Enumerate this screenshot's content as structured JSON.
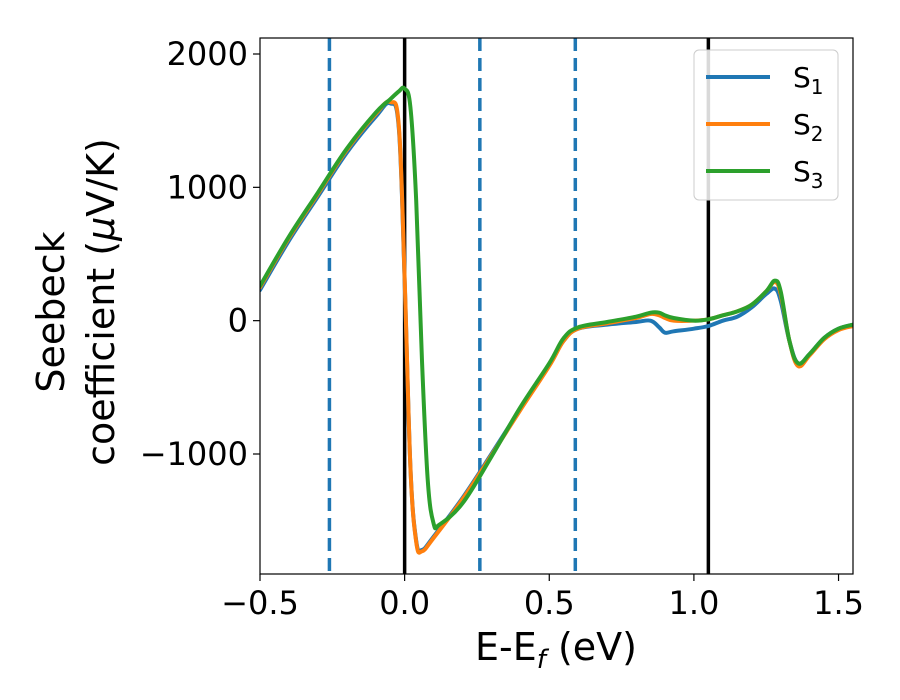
{
  "chart_data": {
    "type": "line",
    "xlabel_main": "E-E",
    "xlabel_sub": "f",
    "xlabel_unit": " (eV)",
    "ylabel_line1": "Seebeck",
    "ylabel_line2_pre": "coefficient  (",
    "ylabel_mu": "μ",
    "ylabel_line2_post": "V/K)",
    "xlim": [
      -0.5,
      1.55
    ],
    "ylim": [
      -1900,
      2120
    ],
    "xticks": [
      -0.5,
      0.0,
      0.5,
      1.0,
      1.5
    ],
    "xtick_labels": [
      "−0.5",
      "0.0",
      "0.5",
      "1.0",
      "1.5"
    ],
    "yticks": [
      -1000,
      0,
      1000,
      2000
    ],
    "ytick_labels": [
      "−1000",
      "0",
      "1000",
      "2000"
    ],
    "vlines_solid": [
      0.0,
      1.05
    ],
    "vlines_dashed": [
      -0.26,
      0.26,
      0.59
    ],
    "colors": {
      "s1": "#1f77b4",
      "s2": "#ff7f0e",
      "s3": "#2ca02c",
      "solid_vline": "#000000",
      "dashed_vline": "#1f77b4"
    },
    "legend": {
      "placement": "top-right"
    },
    "series": [
      {
        "name": "S",
        "sub": "1",
        "color": "#1f77b4",
        "x": [
          -0.5,
          -0.4,
          -0.3,
          -0.2,
          -0.1,
          -0.05,
          -0.02,
          0.0,
          0.02,
          0.04,
          0.06,
          0.1,
          0.2,
          0.3,
          0.4,
          0.5,
          0.55,
          0.6,
          0.7,
          0.8,
          0.85,
          0.88,
          0.9,
          0.93,
          1.0,
          1.05,
          1.1,
          1.15,
          1.2,
          1.25,
          1.28,
          1.3,
          1.33,
          1.36,
          1.4,
          1.45,
          1.5,
          1.55
        ],
        "y": [
          230,
          600,
          930,
          1260,
          1530,
          1630,
          1440,
          300,
          -1100,
          -1650,
          -1720,
          -1620,
          -1330,
          -1000,
          -660,
          -330,
          -150,
          -60,
          -30,
          -10,
          0,
          -50,
          -90,
          -80,
          -60,
          -40,
          0,
          30,
          100,
          200,
          240,
          150,
          -150,
          -320,
          -250,
          -130,
          -60,
          -30
        ]
      },
      {
        "name": "S",
        "sub": "2",
        "color": "#ff7f0e",
        "x": [
          -0.5,
          -0.4,
          -0.3,
          -0.2,
          -0.1,
          -0.05,
          -0.02,
          0.0,
          0.02,
          0.04,
          0.06,
          0.1,
          0.2,
          0.3,
          0.4,
          0.5,
          0.55,
          0.6,
          0.7,
          0.8,
          0.85,
          0.88,
          0.9,
          0.93,
          1.0,
          1.05,
          1.1,
          1.15,
          1.2,
          1.25,
          1.28,
          1.3,
          1.33,
          1.36,
          1.4,
          1.45,
          1.5,
          1.55
        ],
        "y": [
          250,
          620,
          950,
          1280,
          1550,
          1640,
          1460,
          320,
          -1100,
          -1660,
          -1730,
          -1630,
          -1340,
          -1010,
          -670,
          -340,
          -150,
          -60,
          -20,
          20,
          50,
          40,
          20,
          0,
          0,
          10,
          40,
          70,
          120,
          220,
          290,
          200,
          -150,
          -340,
          -260,
          -140,
          -70,
          -40
        ]
      },
      {
        "name": "S",
        "sub": "3",
        "color": "#2ca02c",
        "x": [
          -0.5,
          -0.4,
          -0.3,
          -0.2,
          -0.1,
          -0.05,
          -0.02,
          0.0,
          0.02,
          0.04,
          0.06,
          0.08,
          0.1,
          0.12,
          0.2,
          0.3,
          0.4,
          0.5,
          0.55,
          0.6,
          0.7,
          0.8,
          0.85,
          0.88,
          0.9,
          0.93,
          1.0,
          1.05,
          1.1,
          1.15,
          1.2,
          1.25,
          1.28,
          1.3,
          1.33,
          1.36,
          1.4,
          1.45,
          1.5,
          1.55
        ],
        "y": [
          260,
          630,
          960,
          1290,
          1560,
          1660,
          1720,
          1740,
          1600,
          900,
          -300,
          -1200,
          -1520,
          -1530,
          -1370,
          -1020,
          -650,
          -320,
          -130,
          -50,
          -10,
          30,
          60,
          60,
          40,
          20,
          0,
          10,
          40,
          70,
          120,
          220,
          300,
          220,
          -150,
          -320,
          -250,
          -130,
          -60,
          -30
        ]
      }
    ]
  }
}
